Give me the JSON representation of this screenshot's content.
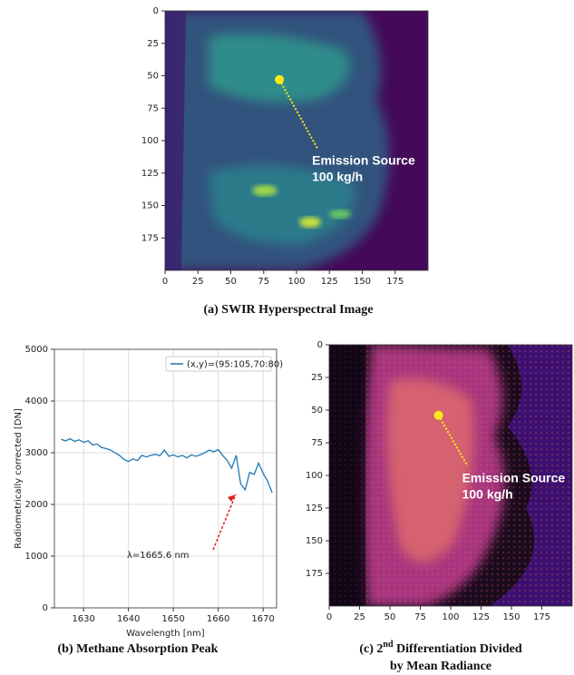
{
  "chart_data": [
    {
      "type": "image",
      "caption": "(a) SWIR Hyperspectral Image",
      "xlim": [
        0,
        200
      ],
      "ylim": [
        200,
        0
      ],
      "xticks": [
        0,
        25,
        50,
        75,
        100,
        125,
        150,
        175
      ],
      "yticks": [
        0,
        25,
        50,
        75,
        100,
        125,
        150,
        175
      ],
      "point": {
        "x": 87,
        "y": 53
      },
      "marker_color": "#ffe81a",
      "annotations": [
        "Emission Source",
        "100 kg/h"
      ]
    },
    {
      "type": "line",
      "caption": "(b) Methane Absorption Peak",
      "xlabel": "Wavelength [nm]",
      "ylabel": "Radiometrically corrected [DN]",
      "xlim": [
        1623.5,
        1673
      ],
      "ylim": [
        0,
        5000
      ],
      "xticks": [
        1630,
        1640,
        1650,
        1660,
        1670
      ],
      "yticks": [
        0,
        1000,
        2000,
        3000,
        4000,
        5000
      ],
      "grid": true,
      "legend": "upper right",
      "x": [
        1625,
        1626,
        1627,
        1628,
        1629,
        1630,
        1631,
        1632,
        1633,
        1634,
        1635,
        1636,
        1637,
        1638,
        1639,
        1640,
        1641,
        1642,
        1643,
        1644,
        1645,
        1646,
        1647,
        1648,
        1649,
        1650,
        1651,
        1652,
        1653,
        1654,
        1655,
        1656,
        1657,
        1658,
        1659,
        1660,
        1661,
        1662,
        1663,
        1664,
        1665,
        1666,
        1667,
        1668,
        1669,
        1670,
        1671,
        1672
      ],
      "series": [
        {
          "name": "(x,y)=(95:105,70:80)",
          "color": "#1f77b4",
          "values": [
            3260,
            3230,
            3270,
            3220,
            3250,
            3200,
            3230,
            3150,
            3170,
            3100,
            3080,
            3050,
            3000,
            2950,
            2870,
            2830,
            2880,
            2850,
            2950,
            2920,
            2950,
            2970,
            2940,
            3050,
            2930,
            2960,
            2920,
            2950,
            2900,
            2960,
            2930,
            2960,
            3000,
            3050,
            3020,
            3060,
            2950,
            2850,
            2700,
            2950,
            2400,
            2280,
            2620,
            2580,
            2800,
            2600,
            2450,
            2230
          ]
        }
      ],
      "annotation": "λ=1665.6 nm"
    },
    {
      "type": "image",
      "caption": [
        "(c) 2",
        "nd",
        " Differentiation Divided",
        "by Mean Radiance"
      ],
      "xlim": [
        0,
        200
      ],
      "ylim": [
        200,
        0
      ],
      "xticks": [
        0,
        25,
        50,
        75,
        100,
        125,
        150,
        175
      ],
      "yticks": [
        0,
        25,
        50,
        75,
        100,
        125,
        150,
        175
      ],
      "point": {
        "x": 90,
        "y": 54
      },
      "marker_color": "#ffe81a",
      "annotations": [
        "Emission Source",
        "100 kg/h"
      ]
    }
  ]
}
